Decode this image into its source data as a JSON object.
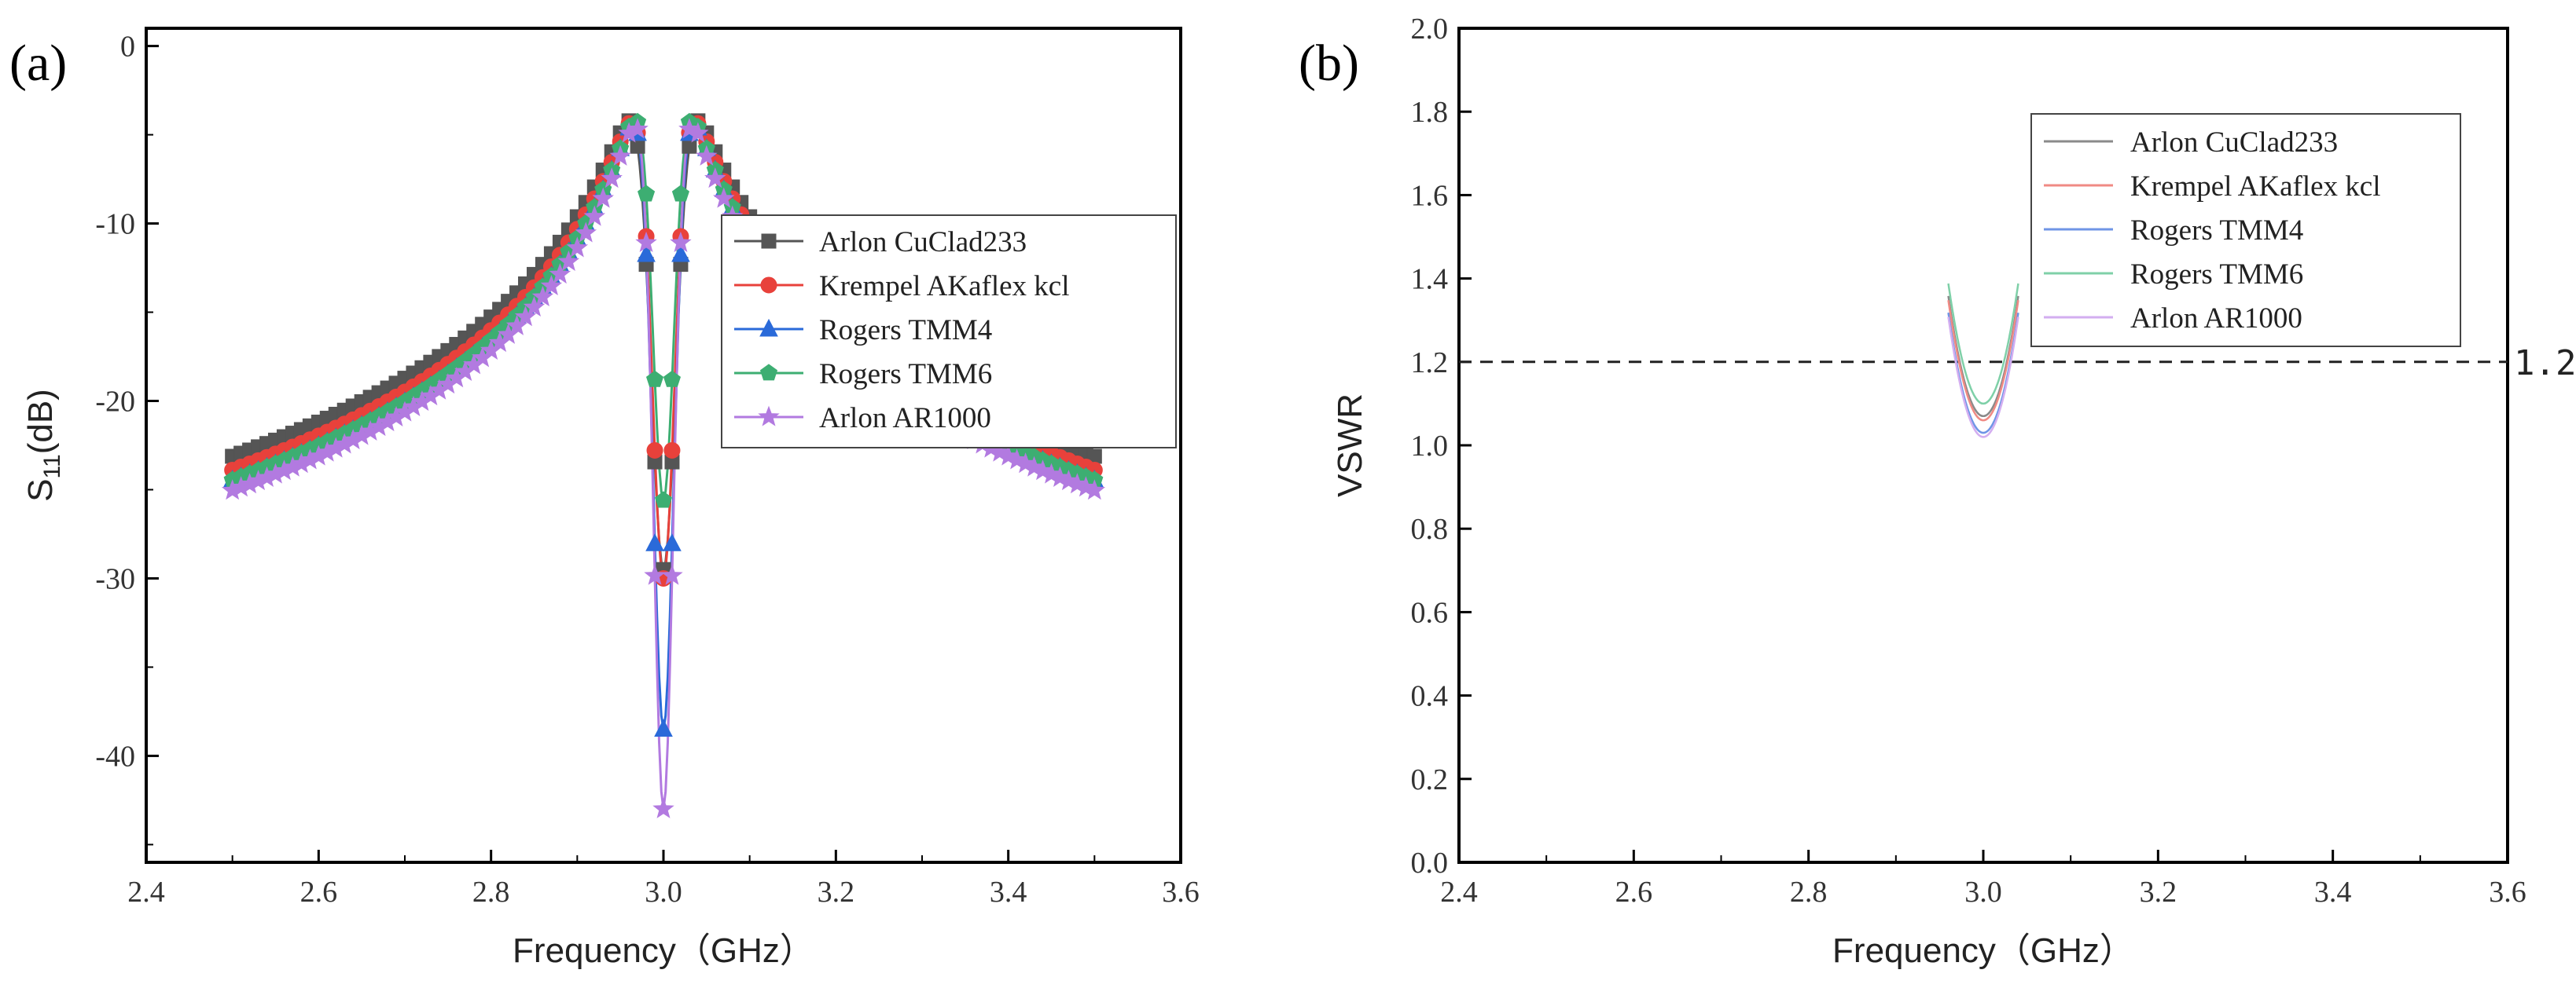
{
  "chart_data": [
    {
      "panel_label": "(a)",
      "type": "line",
      "xlabel": "Frequency（GHz）",
      "ylabel_main": "S",
      "ylabel_sub": "11",
      "ylabel_tail": "(dB)",
      "xlim": [
        2.4,
        3.6
      ],
      "ylim": [
        -46,
        1
      ],
      "xticks": [
        2.4,
        2.6,
        2.8,
        3.0,
        3.2,
        3.4,
        3.6
      ],
      "xtick_labels": [
        "2.4",
        "2.6",
        "2.8",
        "3.0",
        "3.2",
        "3.4",
        "3.6"
      ],
      "yticks": [
        0,
        -10,
        -20,
        -30,
        -40
      ],
      "ytick_labels": [
        "0",
        "-10",
        "-20",
        "-30",
        "-40"
      ],
      "legend_position": "right",
      "series": [
        {
          "name": "Arlon CuClad233",
          "color": "#555555",
          "marker": "square",
          "min_freq": 3.0,
          "min_value": -29.5,
          "width": 0.035
        },
        {
          "name": "Krempel AKaflex kcl",
          "color": "#e8413b",
          "marker": "circle",
          "min_freq": 3.0,
          "min_value": -30.0,
          "width": 0.032
        },
        {
          "name": "Rogers TMM4",
          "color": "#2a6ad9",
          "marker": "triangle",
          "min_freq": 3.0,
          "min_value": -38.5,
          "width": 0.03
        },
        {
          "name": "Rogers TMM6",
          "color": "#3dae72",
          "marker": "pentagon",
          "min_freq": 3.0,
          "min_value": -25.6,
          "width": 0.03
        },
        {
          "name": "Arlon AR1000",
          "color": "#b27ae0",
          "marker": "star",
          "min_freq": 3.0,
          "min_value": -43.0,
          "width": 0.028
        }
      ]
    },
    {
      "panel_label": "(b)",
      "type": "line",
      "xlabel": "Frequency（GHz）",
      "ylabel": "VSWR",
      "xlim": [
        2.4,
        3.6
      ],
      "ylim": [
        0.0,
        2.0
      ],
      "xticks": [
        2.4,
        2.6,
        2.8,
        3.0,
        3.2,
        3.4,
        3.6
      ],
      "xtick_labels": [
        "2.4",
        "2.6",
        "2.8",
        "3.0",
        "3.2",
        "3.4",
        "3.6"
      ],
      "yticks": [
        0.0,
        0.2,
        0.4,
        0.6,
        0.8,
        1.0,
        1.2,
        1.4,
        1.6,
        1.8,
        2.0
      ],
      "ytick_labels": [
        "0.0",
        "0.2",
        "0.4",
        "0.6",
        "0.8",
        "1.0",
        "1.2",
        "1.4",
        "1.6",
        "1.8",
        "2.0"
      ],
      "reference_line": {
        "value": 1.2,
        "label": "1.2"
      },
      "legend_position": "top-right",
      "series": [
        {
          "name": "Arlon CuClad233",
          "color": "#8a8a8a",
          "min_freq": 3.0,
          "min_value": 1.07
        },
        {
          "name": "Krempel AKaflex kcl",
          "color": "#f08a84",
          "min_freq": 3.0,
          "min_value": 1.06
        },
        {
          "name": "Rogers TMM4",
          "color": "#6f95e6",
          "min_freq": 3.0,
          "min_value": 1.03
        },
        {
          "name": "Rogers TMM6",
          "color": "#7fd0a8",
          "min_freq": 3.0,
          "min_value": 1.1
        },
        {
          "name": "Arlon AR1000",
          "color": "#d3aef0",
          "min_freq": 3.0,
          "min_value": 1.02
        }
      ]
    }
  ]
}
